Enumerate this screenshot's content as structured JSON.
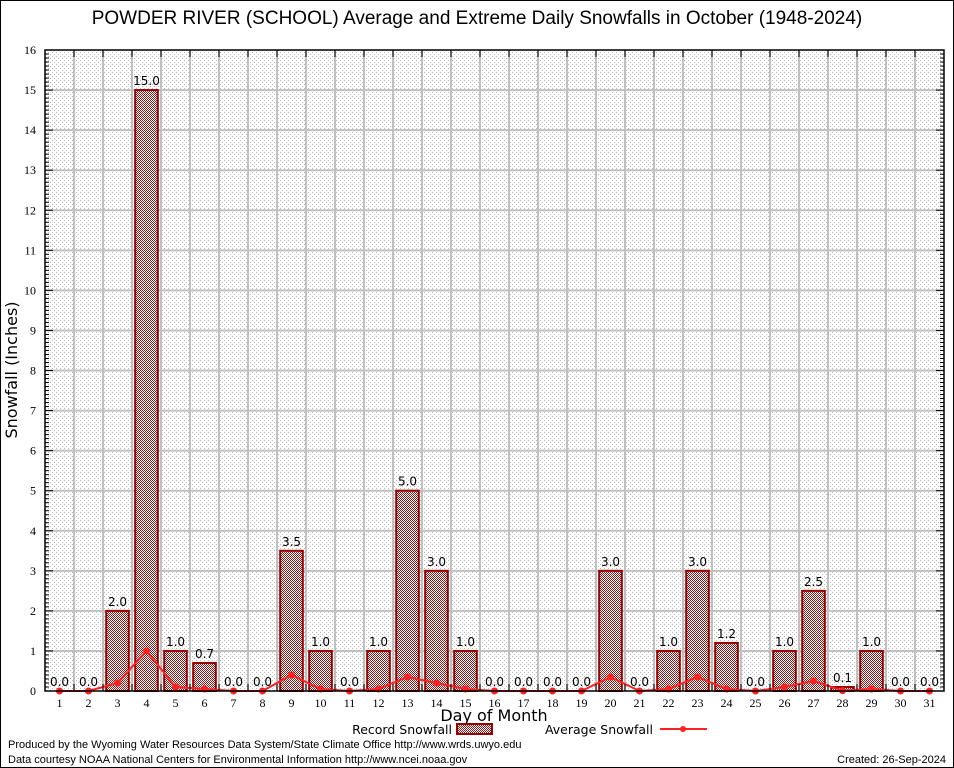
{
  "chart_data": {
    "type": "bar",
    "title": "POWDER RIVER (SCHOOL) Average and Extreme Daily Snowfalls in October (1948-2024)",
    "xlabel": "Day of Month",
    "ylabel": "Snowfall (Inches)",
    "ylim": [
      0,
      16
    ],
    "yticks": [
      "0",
      "1",
      "2",
      "3",
      "4",
      "5",
      "6",
      "7",
      "8",
      "9",
      "10",
      "11",
      "12",
      "13",
      "14",
      "15",
      "16"
    ],
    "categories": [
      "1",
      "2",
      "3",
      "4",
      "5",
      "6",
      "7",
      "8",
      "9",
      "10",
      "11",
      "12",
      "13",
      "14",
      "15",
      "16",
      "17",
      "18",
      "19",
      "20",
      "21",
      "22",
      "23",
      "24",
      "25",
      "26",
      "27",
      "28",
      "29",
      "30",
      "31"
    ],
    "grid": true,
    "legend_position": "bottom-center",
    "series": [
      {
        "name": "Record Snowfall",
        "type": "bar",
        "color": "#990000",
        "values": [
          0.0,
          0.0,
          2.0,
          15.0,
          1.0,
          0.7,
          0.0,
          0.0,
          3.5,
          1.0,
          0.0,
          1.0,
          5.0,
          3.0,
          1.0,
          0.0,
          0.0,
          0.0,
          0.0,
          3.0,
          0.0,
          1.0,
          3.0,
          1.2,
          0.0,
          1.0,
          2.5,
          0.1,
          1.0,
          0.0,
          0.0
        ],
        "labels": [
          "0.0",
          "0.0",
          "2.0",
          "15.0",
          "1.0",
          "0.7",
          "0.0",
          "0.0",
          "3.5",
          "1.0",
          "0.0",
          "1.0",
          "5.0",
          "3.0",
          "1.0",
          "0.0",
          "0.0",
          "0.0",
          "0.0",
          "3.0",
          "0.0",
          "1.0",
          "3.0",
          "1.2",
          "0.0",
          "1.0",
          "2.5",
          "0.1",
          "1.0",
          "0.0",
          "0.0"
        ]
      },
      {
        "name": "Average Snowfall",
        "type": "line",
        "color": "#ff2020",
        "values": [
          0,
          0,
          0.2,
          1.0,
          0.1,
          0.05,
          0,
          0,
          0.4,
          0.05,
          0,
          0.05,
          0.35,
          0.2,
          0.05,
          0,
          0,
          0,
          0,
          0.35,
          0,
          0.05,
          0.35,
          0.05,
          0,
          0.1,
          0.25,
          0.01,
          0.05,
          0,
          0
        ]
      }
    ]
  },
  "credits": {
    "produced": "Produced by the Wyoming Water Resources Data System/State Climate Office http://www.wrds.uwyo.edu",
    "courtesy": "Data courtesy NOAA National Centers for Environmental Information http://www.ncei.noaa.gov",
    "created": "Created: 26-Sep-2024"
  }
}
